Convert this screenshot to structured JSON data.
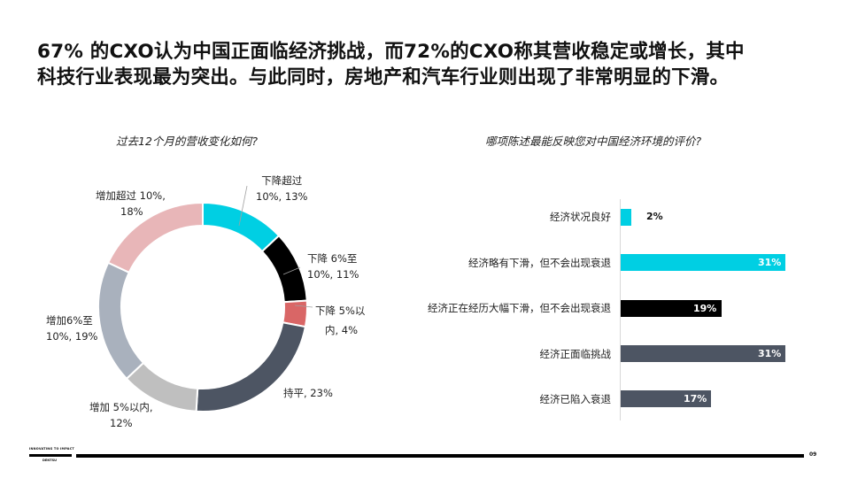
{
  "headline": {
    "line1": "67% 的CXO认为中国正面临经济挑战，而72%的CXO称其营收稳定或增长，其中",
    "line2": "科技行业表现最为突出。与此同时，房地产和汽车行业则出现了非常明显的下滑。"
  },
  "footer": {
    "brand_tagline": "INNOVATING TO IMPACT",
    "brand_name": "DENTSU",
    "page_number": "09"
  },
  "chart_data": [
    {
      "type": "pie",
      "subtype": "donut",
      "title": "过去12个月的营收变化如何?",
      "categories": [
        "下降超过10%",
        "下降6%至10%",
        "下降5%以内",
        "持平",
        "增加5%以内",
        "增加6%至10%",
        "增加超过10%"
      ],
      "values": [
        13,
        11,
        4,
        23,
        12,
        19,
        18
      ],
      "colors": [
        "#00cfe3",
        "#000000",
        "#d96666",
        "#4d5563",
        "#bfbfbf",
        "#a9b1bd",
        "#e8b6b8"
      ],
      "labels": [
        {
          "line1": "下降超过",
          "line2": "10%, 13%"
        },
        {
          "line1": "下降 6%至",
          "line2": "10%, 11%"
        },
        {
          "line1": "下降 5%以",
          "line2": "内, 4%"
        },
        {
          "line1": "持平, 23%",
          "line2": ""
        },
        {
          "line1": "增加 5%以内,",
          "line2": "12%"
        },
        {
          "line1": "增加6%至",
          "line2": "10%, 19%"
        },
        {
          "line1": "增加超过 10%,",
          "line2": "18%"
        }
      ],
      "start_angle": "12 o'clock, clockwise",
      "legend": "none (data labels)"
    },
    {
      "type": "bar",
      "orientation": "horizontal",
      "title": "哪项陈述最能反映您对中国经济环境的评价?",
      "categories": [
        "经济状况良好",
        "经济略有下滑，但不会出现衰退",
        "经济正在经历大幅下滑，但不会出现衰退",
        "经济正面临挑战",
        "经济已陷入衰退"
      ],
      "values": [
        2,
        31,
        19,
        31,
        17
      ],
      "value_labels": [
        "2%",
        "31%",
        "19%",
        "31%",
        "17%"
      ],
      "colors": [
        "#00cfe3",
        "#00cfe3",
        "#000000",
        "#4d5563",
        "#4d5563"
      ],
      "xlabel": "",
      "ylabel": "",
      "grid": false,
      "xlim": [
        0,
        31
      ]
    }
  ]
}
